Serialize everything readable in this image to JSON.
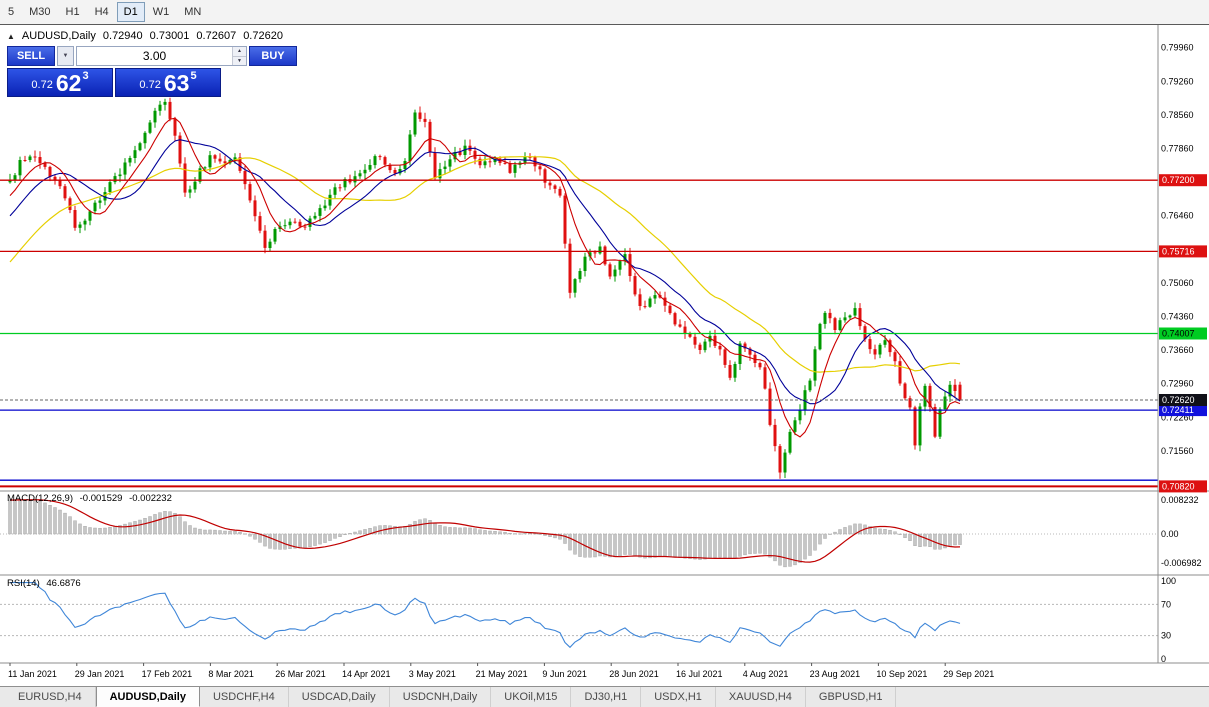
{
  "toolbar": {
    "timeframes": [
      {
        "label": "5",
        "active": false
      },
      {
        "label": "M30",
        "active": false
      },
      {
        "label": "H1",
        "active": false
      },
      {
        "label": "H4",
        "active": false
      },
      {
        "label": "D1",
        "active": true
      },
      {
        "label": "W1",
        "active": false
      },
      {
        "label": "MN",
        "active": false
      }
    ]
  },
  "chart": {
    "symbol": "AUDUSD,Daily",
    "ohlc": {
      "open": "0.72940",
      "high": "0.73001",
      "low": "0.72607",
      "close": "0.72620"
    }
  },
  "trade_panel": {
    "sell_label": "SELL",
    "buy_label": "BUY",
    "volume": "3.00",
    "sell_price": {
      "prefix": "0.72",
      "big": "62",
      "sup": "3"
    },
    "buy_price": {
      "prefix": "0.72",
      "big": "63",
      "sup": "5"
    }
  },
  "indicators": {
    "macd": {
      "label": "MACD(12,26,9)",
      "value": "-0.001529",
      "signal": "-0.002232"
    },
    "rsi": {
      "label": "RSI(14)",
      "value": "46.6876"
    }
  },
  "chart_data": {
    "type": "candlestick",
    "symbol": "AUDUSD",
    "timeframe": "Daily",
    "pre_bars": 60,
    "pre_start": 0.7,
    "pre_end": 0.7715,
    "anchors": [
      [
        0,
        0.7715
      ],
      [
        2,
        0.7755
      ],
      [
        5,
        0.7772
      ],
      [
        8,
        0.773
      ],
      [
        11,
        0.769
      ],
      [
        13,
        0.7618
      ],
      [
        16,
        0.7648
      ],
      [
        19,
        0.77
      ],
      [
        22,
        0.7738
      ],
      [
        25,
        0.7775
      ],
      [
        27,
        0.7825
      ],
      [
        29,
        0.7862
      ],
      [
        31,
        0.7882
      ],
      [
        33,
        0.781
      ],
      [
        35,
        0.7688
      ],
      [
        37,
        0.7722
      ],
      [
        40,
        0.7768
      ],
      [
        43,
        0.7758
      ],
      [
        45,
        0.7772
      ],
      [
        47,
        0.7705
      ],
      [
        49,
        0.7645
      ],
      [
        51,
        0.7585
      ],
      [
        53,
        0.7612
      ],
      [
        56,
        0.764
      ],
      [
        59,
        0.7622
      ],
      [
        62,
        0.7662
      ],
      [
        65,
        0.77
      ],
      [
        68,
        0.7722
      ],
      [
        71,
        0.7748
      ],
      [
        74,
        0.7772
      ],
      [
        77,
        0.7732
      ],
      [
        79,
        0.7762
      ],
      [
        81,
        0.7868
      ],
      [
        83,
        0.7842
      ],
      [
        85,
        0.7728
      ],
      [
        88,
        0.7762
      ],
      [
        91,
        0.7788
      ],
      [
        94,
        0.7748
      ],
      [
        97,
        0.7768
      ],
      [
        100,
        0.7742
      ],
      [
        103,
        0.7772
      ],
      [
        106,
        0.7742
      ],
      [
        108,
        0.7702
      ],
      [
        110,
        0.7688
      ],
      [
        112,
        0.7482
      ],
      [
        115,
        0.7555
      ],
      [
        118,
        0.758
      ],
      [
        120,
        0.7522
      ],
      [
        123,
        0.7562
      ],
      [
        126,
        0.7452
      ],
      [
        129,
        0.7482
      ],
      [
        132,
        0.7442
      ],
      [
        135,
        0.7398
      ],
      [
        138,
        0.7372
      ],
      [
        140,
        0.7396
      ],
      [
        142,
        0.7362
      ],
      [
        144,
        0.7302
      ],
      [
        146,
        0.7386
      ],
      [
        148,
        0.7356
      ],
      [
        150,
        0.7332
      ],
      [
        151,
        0.7288
      ],
      [
        152,
        0.7215
      ],
      [
        154,
        0.7112
      ],
      [
        156,
        0.7198
      ],
      [
        158,
        0.7248
      ],
      [
        160,
        0.7308
      ],
      [
        162,
        0.7418
      ],
      [
        163,
        0.7448
      ],
      [
        165,
        0.7415
      ],
      [
        167,
        0.7442
      ],
      [
        169,
        0.7448
      ],
      [
        171,
        0.7395
      ],
      [
        173,
        0.7352
      ],
      [
        175,
        0.7392
      ],
      [
        177,
        0.7345
      ],
      [
        178,
        0.7302
      ],
      [
        180,
        0.7242
      ],
      [
        181,
        0.7172
      ],
      [
        182,
        0.7248
      ],
      [
        183,
        0.7288
      ],
      [
        184,
        0.7248
      ],
      [
        185,
        0.7188
      ],
      [
        186,
        0.7242
      ],
      [
        188,
        0.7292
      ],
      [
        190,
        0.7262
      ]
    ],
    "last_candle": {
      "o": 0.7294,
      "h": 0.73001,
      "l": 0.72607,
      "c": 0.7262
    },
    "dates": [
      "11 Jan 2021",
      "29 Jan 2021",
      "17 Feb 2021",
      "8 Mar 2021",
      "26 Mar 2021",
      "14 Apr 2021",
      "3 May 2021",
      "21 May 2021",
      "9 Jun 2021",
      "28 Jun 2021",
      "16 Jul 2021",
      "4 Aug 2021",
      "23 Aug 2021",
      "10 Sep 2021",
      "29 Sep 2021"
    ],
    "price_axis": {
      "ticks": [
        "0.79960",
        "0.79260",
        "0.78560",
        "0.77860",
        "0.76460",
        "0.75060",
        "0.74360",
        "0.73660",
        "0.72960",
        "0.72260",
        "0.71560"
      ],
      "badges": [
        {
          "text": "0.77200",
          "value": 0.772,
          "bg": "#dd1111",
          "fg": "#ffffff"
        },
        {
          "text": "0.75716",
          "value": 0.75716,
          "bg": "#dd1111",
          "fg": "#ffffff"
        },
        {
          "text": "0.74007",
          "value": 0.74007,
          "bg": "#00cc22",
          "fg": "#000000"
        },
        {
          "text": "0.72411",
          "value": 0.72411,
          "bg": "#1111dd",
          "fg": "#ffffff"
        },
        {
          "text": "0.72620",
          "value": 0.7262,
          "bg": "#101018",
          "fg": "#ffffff"
        },
        {
          "text": "0.70820",
          "value": 0.7082,
          "bg": "#dd1111",
          "fg": "#ffffff"
        }
      ]
    },
    "hlines": [
      {
        "value": 0.772,
        "color": "#cc0000",
        "width": 1.3
      },
      {
        "value": 0.75716,
        "color": "#cc0000",
        "width": 1.3
      },
      {
        "value": 0.74007,
        "color": "#00cc22",
        "width": 1.3
      },
      {
        "value": 0.72411,
        "color": "#0000cc",
        "width": 1.3
      },
      {
        "value": 0.7262,
        "color": "#666666",
        "width": 1,
        "dash": true
      },
      {
        "value": 0.7095,
        "color": "#0000cc",
        "width": 1.3
      },
      {
        "value": 0.7082,
        "color": "#cc0000",
        "width": 2
      }
    ],
    "macd_axis": [
      {
        "text": "0.008232",
        "value": 0.008232
      },
      {
        "text": "0.00",
        "value": 0
      },
      {
        "text": "-0.006982",
        "value": -0.006982
      }
    ],
    "rsi_axis": [
      {
        "text": "100",
        "value": 100
      },
      {
        "text": "70",
        "value": 70
      },
      {
        "text": "30",
        "value": 30
      },
      {
        "text": "0",
        "value": 0
      }
    ],
    "rsi_levels": [
      70,
      30
    ],
    "colors": {
      "up": "#009900",
      "down": "#e01010",
      "ma_fast": "#cc0000",
      "ma_mid": "#000099",
      "ma_slow": "#e6cf00",
      "macd_hist": "#c6c6c6",
      "macd_hist_border": "#9e9e9e",
      "macd_signal": "#c00000",
      "rsi_line": "#3f86d8"
    }
  },
  "tabs": [
    {
      "label": "EURUSD,H4",
      "active": false
    },
    {
      "label": "AUDUSD,Daily",
      "active": true
    },
    {
      "label": "USDCHF,H4",
      "active": false
    },
    {
      "label": "USDCAD,Daily",
      "active": false
    },
    {
      "label": "USDCNH,Daily",
      "active": false
    },
    {
      "label": "UKOil,M15",
      "active": false
    },
    {
      "label": "DJ30,H1",
      "active": false
    },
    {
      "label": "USDX,H1",
      "active": false
    },
    {
      "label": "XAUUSD,H4",
      "active": false
    },
    {
      "label": "GBPUSD,H1",
      "active": false
    }
  ]
}
